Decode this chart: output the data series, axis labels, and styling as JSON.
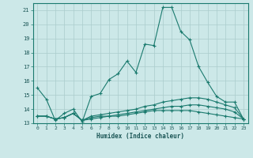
{
  "xlabel": "Humidex (Indice chaleur)",
  "x_ticks": [
    0,
    1,
    2,
    3,
    4,
    5,
    6,
    7,
    8,
    9,
    10,
    11,
    12,
    13,
    14,
    15,
    16,
    17,
    18,
    19,
    20,
    21,
    22,
    23
  ],
  "xlim": [
    -0.5,
    23.5
  ],
  "ylim": [
    13,
    21.5
  ],
  "y_ticks": [
    13,
    14,
    15,
    16,
    17,
    18,
    19,
    20,
    21
  ],
  "background_color": "#cce8e8",
  "grid_color": "#aacccc",
  "line_color": "#1a7a6e",
  "series": [
    {
      "x": [
        0,
        1,
        2,
        3,
        4,
        5,
        6,
        7,
        8,
        9,
        10,
        11,
        12,
        13,
        14,
        15,
        16,
        17,
        18,
        19,
        20,
        21,
        22,
        23
      ],
      "y": [
        15.5,
        14.7,
        13.2,
        13.7,
        14.0,
        13.1,
        14.9,
        15.1,
        16.1,
        16.5,
        17.4,
        16.6,
        18.6,
        18.5,
        21.2,
        21.2,
        19.5,
        18.9,
        17.0,
        15.9,
        14.9,
        14.5,
        14.5,
        13.3
      ]
    },
    {
      "x": [
        0,
        1,
        2,
        3,
        4,
        5,
        6,
        7,
        8,
        9,
        10,
        11,
        12,
        13,
        14,
        15,
        16,
        17,
        18,
        19,
        20,
        21,
        22,
        23
      ],
      "y": [
        13.5,
        13.5,
        13.3,
        13.4,
        13.7,
        13.2,
        13.5,
        13.6,
        13.7,
        13.8,
        13.9,
        14.0,
        14.2,
        14.3,
        14.5,
        14.6,
        14.7,
        14.8,
        14.8,
        14.7,
        14.5,
        14.3,
        14.1,
        13.3
      ]
    },
    {
      "x": [
        0,
        1,
        2,
        3,
        4,
        5,
        6,
        7,
        8,
        9,
        10,
        11,
        12,
        13,
        14,
        15,
        16,
        17,
        18,
        19,
        20,
        21,
        22,
        23
      ],
      "y": [
        13.5,
        13.5,
        13.3,
        13.4,
        13.7,
        13.2,
        13.4,
        13.5,
        13.5,
        13.6,
        13.7,
        13.8,
        13.9,
        14.0,
        14.1,
        14.2,
        14.2,
        14.3,
        14.3,
        14.2,
        14.1,
        14.0,
        13.8,
        13.3
      ]
    },
    {
      "x": [
        0,
        1,
        2,
        3,
        4,
        5,
        6,
        7,
        8,
        9,
        10,
        11,
        12,
        13,
        14,
        15,
        16,
        17,
        18,
        19,
        20,
        21,
        22,
        23
      ],
      "y": [
        13.5,
        13.5,
        13.3,
        13.4,
        13.7,
        13.2,
        13.3,
        13.4,
        13.5,
        13.5,
        13.6,
        13.7,
        13.8,
        13.9,
        13.9,
        13.9,
        13.9,
        13.9,
        13.8,
        13.7,
        13.6,
        13.5,
        13.4,
        13.3
      ]
    }
  ]
}
